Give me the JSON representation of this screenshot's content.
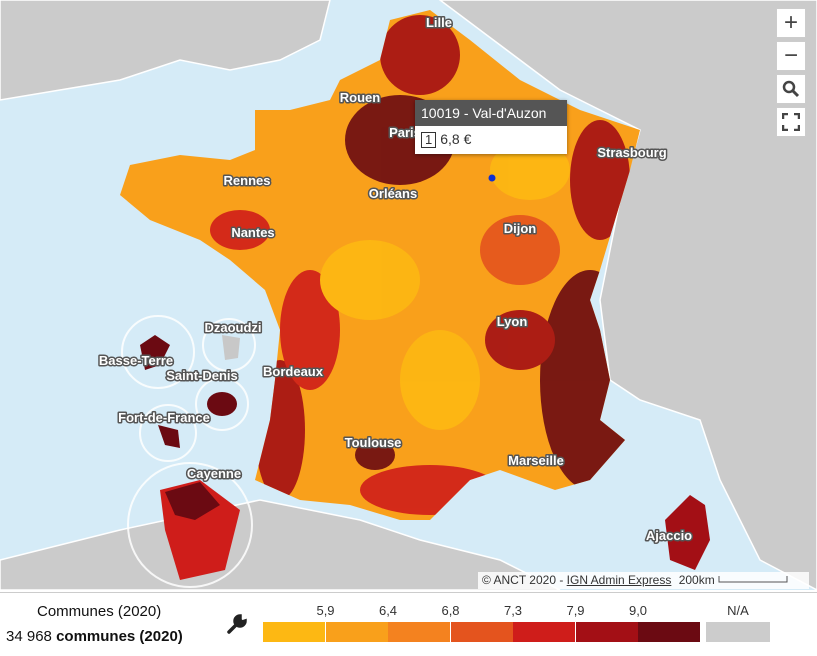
{
  "cities": [
    "Lille",
    "Rouen",
    "Paris",
    "Strasbourg",
    "Rennes",
    "Orléans",
    "Nantes",
    "Dijon",
    "Dzaoudzi",
    "Lyon",
    "Basse-Terre",
    "Saint-Denis",
    "Bordeaux",
    "Fort-de-France",
    "Toulouse",
    "Marseille",
    "Cayenne",
    "Ajaccio"
  ],
  "controls": {
    "zoom_in": "+",
    "zoom_out": "−"
  },
  "tooltip": {
    "title": "10019 - Val-d'Auzon",
    "rank": "1",
    "value": "6,8 €"
  },
  "attribution": {
    "prefix": "© ANCT 2020 - ",
    "link": "IGN Admin Express",
    "scale": "200km"
  },
  "panel": {
    "title": "Communes (2020)",
    "count": "34 968",
    "count_label": "communes (2020)"
  },
  "legend": {
    "colors": [
      "#fdb813",
      "#f9a01b",
      "#f4821f",
      "#e4541e",
      "#cf1d1a",
      "#a30f15",
      "#6b0a12"
    ],
    "breaks": [
      "5,9",
      "6,4",
      "6,8",
      "7,3",
      "7,9",
      "9,0"
    ],
    "na_label": "N/A",
    "na_color": "#cccccc"
  }
}
